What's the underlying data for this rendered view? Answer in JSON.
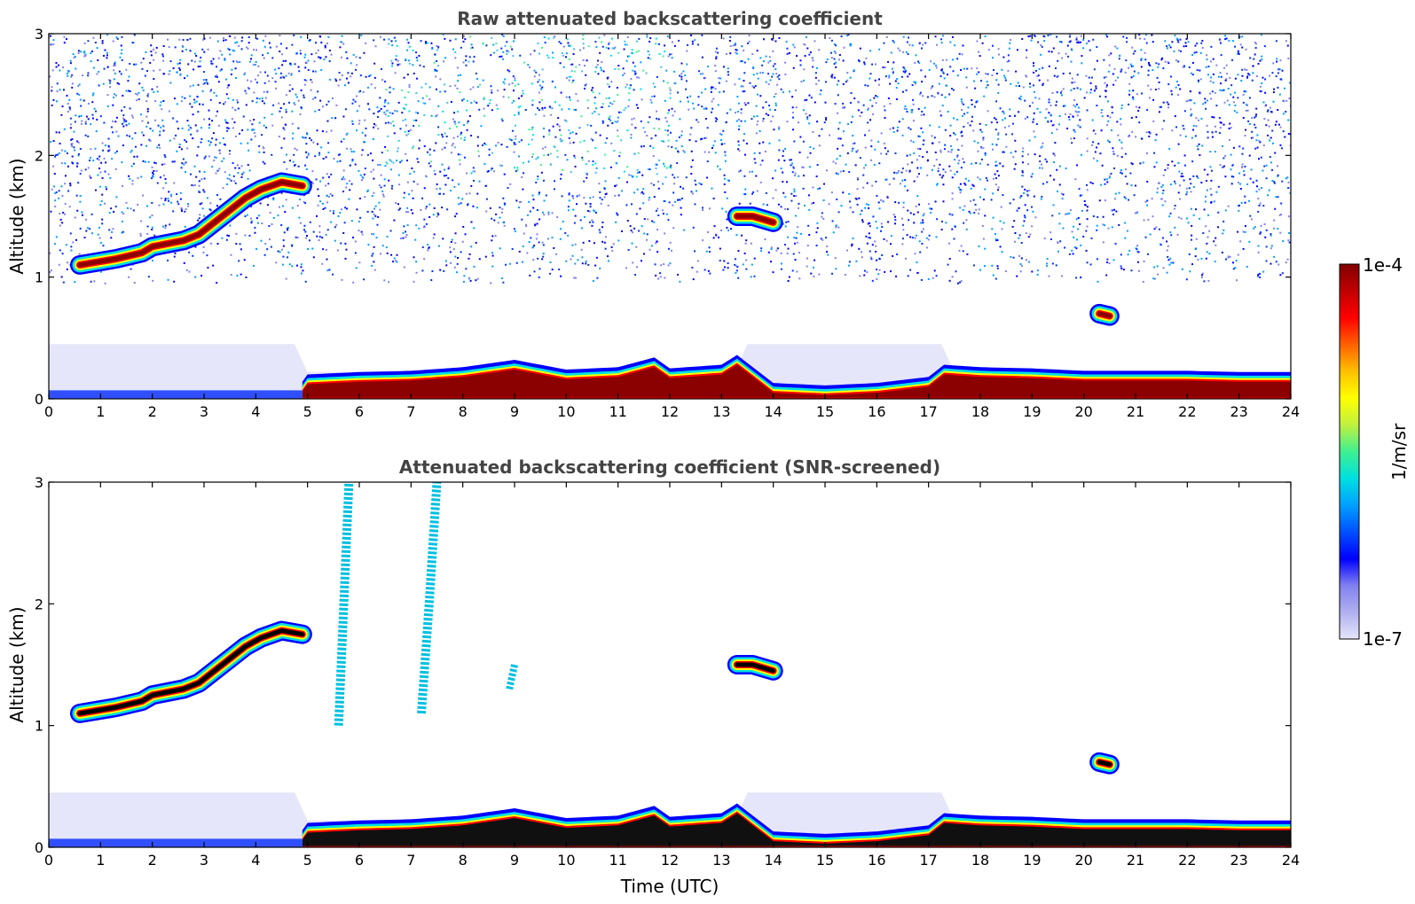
{
  "chart_data": [
    {
      "type": "heatmap",
      "title": "Raw attenuated backscattering coefficient",
      "xlabel": "",
      "ylabel": "Altitude (km)",
      "xlim": [
        0,
        24
      ],
      "ylim": [
        0,
        3
      ],
      "xticks": [
        0,
        1,
        2,
        3,
        4,
        5,
        6,
        7,
        8,
        9,
        10,
        11,
        12,
        13,
        14,
        15,
        16,
        17,
        18,
        19,
        20,
        21,
        22,
        23,
        24
      ],
      "yticks": [
        0,
        1,
        2,
        3
      ],
      "screened": false,
      "features": [
        {
          "kind": "cloud",
          "x": [
            0.6,
            1.3,
            1.8,
            2.0,
            2.6,
            2.9,
            3.2,
            3.5,
            3.8,
            4.1,
            4.5,
            4.9
          ],
          "y": [
            1.1,
            1.15,
            1.2,
            1.25,
            1.3,
            1.35,
            1.45,
            1.55,
            1.65,
            1.72,
            1.78,
            1.75
          ]
        },
        {
          "kind": "cloud",
          "x": [
            13.3,
            13.6,
            14.0
          ],
          "y": [
            1.5,
            1.5,
            1.45
          ]
        },
        {
          "kind": "cloud",
          "x": [
            20.3,
            20.5
          ],
          "y": [
            0.7,
            0.68
          ]
        },
        {
          "kind": "boundary-layer",
          "x": [
            0,
            1,
            2,
            3,
            4,
            4.9,
            5,
            6,
            7,
            8,
            9,
            10,
            11,
            11.7,
            12,
            13,
            13.3,
            14,
            15,
            16,
            17,
            17.3,
            18,
            19,
            20,
            21,
            22,
            23,
            24
          ],
          "y": [
            0.03,
            0.03,
            0.04,
            0.05,
            0.08,
            0.06,
            0.12,
            0.14,
            0.15,
            0.18,
            0.24,
            0.16,
            0.18,
            0.26,
            0.17,
            0.2,
            0.28,
            0.05,
            0.03,
            0.05,
            0.1,
            0.2,
            0.18,
            0.17,
            0.15,
            0.15,
            0.15,
            0.14,
            0.14
          ]
        }
      ]
    },
    {
      "type": "heatmap",
      "title": "Attenuated backscattering coefficient (SNR-screened)",
      "xlabel": "Time (UTC)",
      "ylabel": "Altitude (km)",
      "xlim": [
        0,
        24
      ],
      "ylim": [
        0,
        3
      ],
      "xticks": [
        0,
        1,
        2,
        3,
        4,
        5,
        6,
        7,
        8,
        9,
        10,
        11,
        12,
        13,
        14,
        15,
        16,
        17,
        18,
        19,
        20,
        21,
        22,
        23,
        24
      ],
      "yticks": [
        0,
        1,
        2,
        3
      ],
      "screened": true,
      "features": [
        {
          "kind": "cloud",
          "x": [
            0.6,
            1.3,
            1.8,
            2.0,
            2.6,
            2.9,
            3.2,
            3.5,
            3.8,
            4.1,
            4.5,
            4.9
          ],
          "y": [
            1.1,
            1.15,
            1.2,
            1.25,
            1.3,
            1.35,
            1.45,
            1.55,
            1.65,
            1.72,
            1.78,
            1.75
          ]
        },
        {
          "kind": "cloud",
          "x": [
            13.3,
            13.6,
            14.0
          ],
          "y": [
            1.5,
            1.5,
            1.45
          ]
        },
        {
          "kind": "cloud",
          "x": [
            20.3,
            20.5
          ],
          "y": [
            0.7,
            0.68
          ]
        },
        {
          "kind": "boundary-layer",
          "x": [
            0,
            1,
            2,
            3,
            4,
            4.9,
            5,
            6,
            7,
            8,
            9,
            10,
            11,
            11.7,
            12,
            13,
            13.3,
            14,
            15,
            16,
            17,
            17.3,
            18,
            19,
            20,
            21,
            22,
            23,
            24
          ],
          "y": [
            0.03,
            0.03,
            0.04,
            0.05,
            0.08,
            0.06,
            0.12,
            0.14,
            0.15,
            0.18,
            0.24,
            0.16,
            0.18,
            0.26,
            0.17,
            0.2,
            0.28,
            0.05,
            0.03,
            0.05,
            0.1,
            0.2,
            0.18,
            0.17,
            0.15,
            0.15,
            0.15,
            0.14,
            0.14
          ]
        },
        {
          "kind": "fallstreak",
          "x": [
            5.6,
            5.7,
            5.8
          ],
          "y": [
            1.0,
            2.0,
            3.0
          ]
        },
        {
          "kind": "fallstreak",
          "x": [
            7.2,
            7.35,
            7.5
          ],
          "y": [
            1.1,
            2.0,
            3.0
          ]
        },
        {
          "kind": "thin-cloud",
          "x": [
            8.9,
            9.0
          ],
          "y": [
            1.3,
            1.5
          ]
        }
      ]
    }
  ],
  "colorbar": {
    "label": "1/m/sr",
    "max_label": "1e-4",
    "min_label": "1e-7",
    "scale": "log",
    "range": [
      1e-07,
      0.0001
    ],
    "colormap": [
      "#e6e6fa",
      "#b0b0f0",
      "#8080f0",
      "#0000ff",
      "#0050ff",
      "#00a0ff",
      "#00e0e0",
      "#40f090",
      "#c0f040",
      "#ffff00",
      "#ffc000",
      "#ff6000",
      "#ff0000",
      "#c00000",
      "#800000"
    ]
  }
}
